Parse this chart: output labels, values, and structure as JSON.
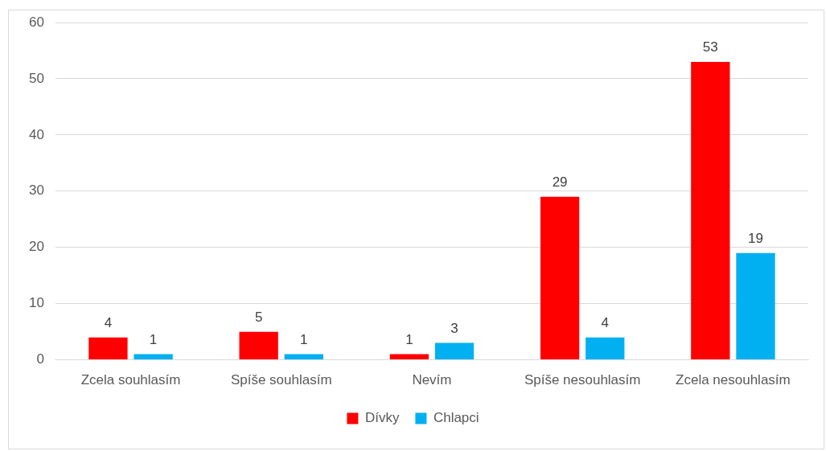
{
  "chart_data": {
    "type": "bar",
    "categories": [
      "Zcela souhlasím",
      "Spíše souhlasím",
      "Nevím",
      "Spíše nesouhlasím",
      "Zcela nesouhlasím"
    ],
    "series": [
      {
        "name": "Dívky",
        "color": "#ff0000",
        "values": [
          4,
          5,
          1,
          29,
          53
        ]
      },
      {
        "name": "Chlapci",
        "color": "#00b0f0",
        "values": [
          1,
          1,
          3,
          4,
          19
        ]
      }
    ],
    "ylim": [
      0,
      60
    ],
    "yticks": [
      0,
      10,
      20,
      30,
      40,
      50,
      60
    ],
    "grid": "y",
    "legend": "bottom",
    "data_labels": true
  }
}
